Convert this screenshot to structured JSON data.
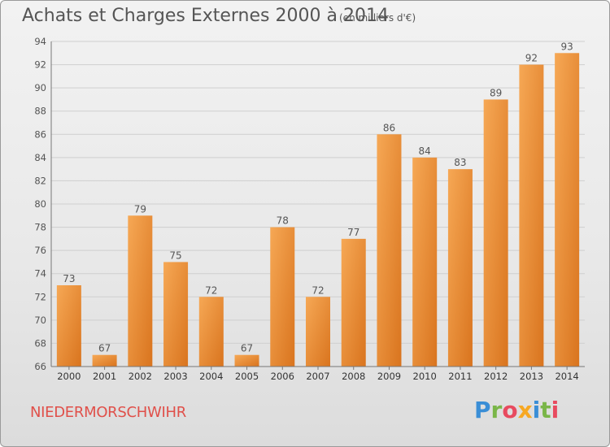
{
  "header": {
    "title": "Achats et Charges Externes 2000 à 2014",
    "unit": "(en milliers d'€)"
  },
  "footer": {
    "commune": "NIEDERMORSCHWIHR",
    "brand": "Proxiti"
  },
  "colors": {
    "bar_light": "#f6a855",
    "bar_dark": "#d9741e",
    "grid": "#cfcfcf",
    "text": "#555555",
    "commune": "#e0504a"
  },
  "chart_data": {
    "type": "bar",
    "categories": [
      "2000",
      "2001",
      "2002",
      "2003",
      "2004",
      "2005",
      "2006",
      "2007",
      "2008",
      "2009",
      "2010",
      "2011",
      "2012",
      "2013",
      "2014"
    ],
    "values": [
      73,
      67,
      79,
      75,
      72,
      67,
      78,
      72,
      77,
      86,
      84,
      83,
      89,
      92,
      93
    ],
    "ylim": [
      66,
      94
    ],
    "yticks": [
      66,
      68,
      70,
      72,
      74,
      76,
      78,
      80,
      82,
      84,
      86,
      88,
      90,
      92,
      94
    ],
    "grid": true,
    "data_labels": true
  }
}
